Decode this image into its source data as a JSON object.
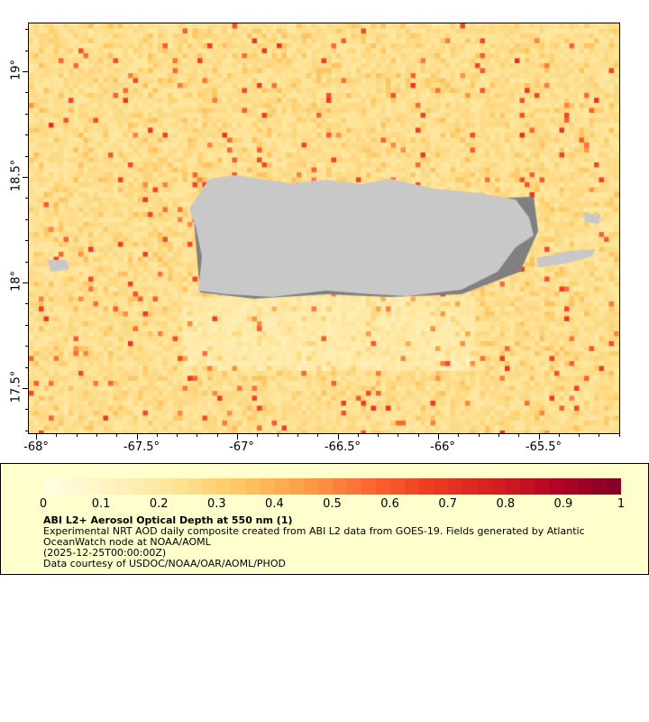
{
  "map": {
    "x_ticks": [
      "-68°",
      "-67.5°",
      "-67°",
      "-66.5°",
      "-66°",
      "-65.5°"
    ],
    "y_ticks": [
      "19°",
      "18.5°",
      "18°",
      "17.5°"
    ],
    "land_color": "#c8c8c8",
    "mask_color": "#808080"
  },
  "legend": {
    "colorbar_ticks": [
      "0",
      "0.1",
      "0.2",
      "0.3",
      "0.4",
      "0.5",
      "0.6",
      "0.7",
      "0.8",
      "0.9",
      "1"
    ],
    "colormap": [
      "#ffffe5",
      "#fff3c2",
      "#fee59a",
      "#fec965",
      "#fda248",
      "#fc6b35",
      "#f03b21",
      "#d61f1f",
      "#b40426",
      "#800026"
    ],
    "title": "ABI L2+ Aerosol Optical Depth at 550 nm (1)",
    "line1": "Experimental NRT AOD daily composite created from ABI L2 data from GOES-19. Fields generated by Atlantic",
    "line2": "OceanWatch node at NOAA/AOML",
    "line3": "(2025-12-25T00:00:00Z)",
    "line4": "Data courtesy of USDOC/NOAA/OAR/AOML/PHOD"
  }
}
